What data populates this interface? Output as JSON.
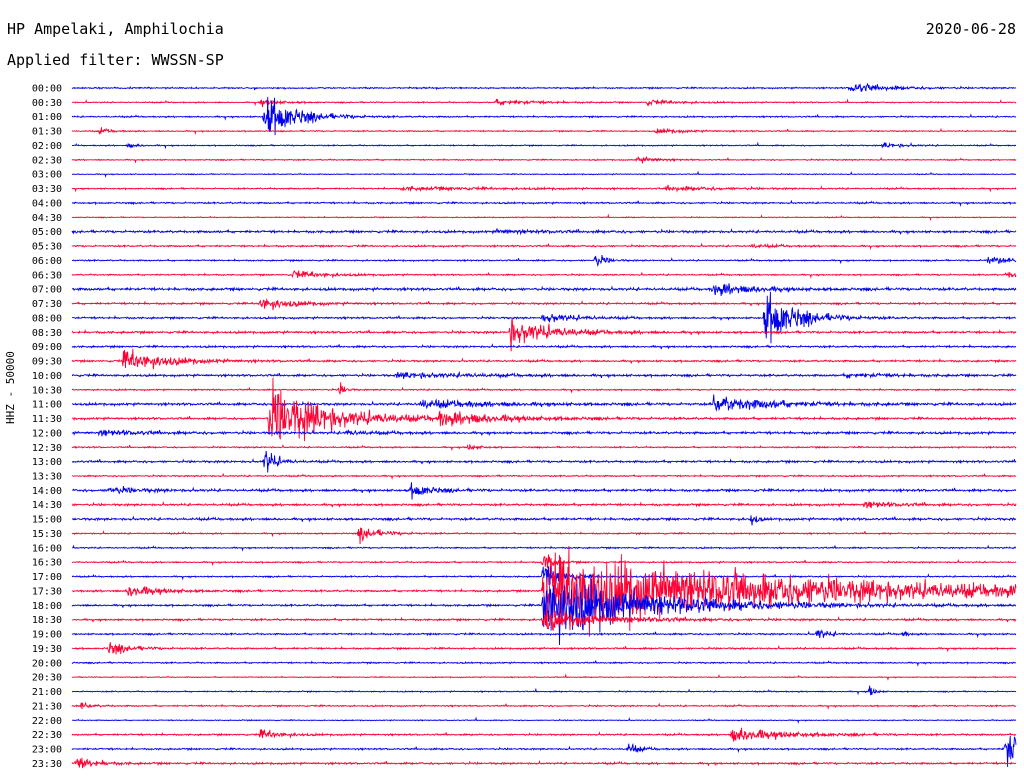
{
  "header": {
    "station": "HP Ampelaki, Amphilochia",
    "date": "2020-06-28",
    "filter_label": "Applied filter: WWSSN-SP"
  },
  "chart_data": {
    "type": "line",
    "title": "HP Ampelaki, Amphilochia",
    "ylabel": "HHZ - 50000",
    "xlabel": "",
    "colors": {
      "even": "#0000ee",
      "odd": "#ff0033"
    },
    "traces": [
      {
        "label": "00:00",
        "noise": 0.6,
        "events": [
          [
            0.825,
            4,
            0.04
          ]
        ]
      },
      {
        "label": "00:30",
        "noise": 0.5,
        "events": [
          [
            0.2,
            3,
            0.02
          ],
          [
            0.45,
            2.5,
            0.04
          ],
          [
            0.61,
            2.5,
            0.03
          ]
        ]
      },
      {
        "label": "01:00",
        "noise": 0.6,
        "events": [
          [
            0.205,
            22,
            0.03
          ]
        ]
      },
      {
        "label": "01:30",
        "noise": 0.5,
        "events": [
          [
            0.03,
            3,
            0.01
          ],
          [
            0.62,
            2,
            0.03
          ]
        ]
      },
      {
        "label": "02:00",
        "noise": 0.5,
        "events": [
          [
            0.06,
            2,
            0.01
          ],
          [
            0.86,
            2.5,
            0.02
          ]
        ]
      },
      {
        "label": "02:30",
        "noise": 0.5,
        "events": [
          [
            0.6,
            3,
            0.02
          ]
        ]
      },
      {
        "label": "03:00",
        "noise": 0.4,
        "events": []
      },
      {
        "label": "03:30",
        "noise": 0.6,
        "events": [
          [
            0.35,
            1.5,
            0.1
          ],
          [
            0.63,
            2,
            0.05
          ]
        ]
      },
      {
        "label": "04:00",
        "noise": 0.7,
        "events": []
      },
      {
        "label": "04:30",
        "noise": 0.4,
        "events": []
      },
      {
        "label": "05:00",
        "noise": 1.0,
        "events": [
          [
            0.45,
            1.5,
            0.05
          ]
        ]
      },
      {
        "label": "05:30",
        "noise": 0.7,
        "events": [
          [
            0.72,
            1.5,
            0.02
          ]
        ]
      },
      {
        "label": "06:00",
        "noise": 0.6,
        "events": [
          [
            0.555,
            6,
            0.01
          ],
          [
            0.97,
            4,
            0.02
          ]
        ]
      },
      {
        "label": "06:30",
        "noise": 0.6,
        "events": [
          [
            0.235,
            4,
            0.03
          ],
          [
            0.99,
            3,
            0.03
          ]
        ]
      },
      {
        "label": "07:00",
        "noise": 1.1,
        "events": [
          [
            0.68,
            6,
            0.04
          ]
        ]
      },
      {
        "label": "07:30",
        "noise": 0.8,
        "events": [
          [
            0.2,
            6,
            0.03
          ]
        ]
      },
      {
        "label": "08:00",
        "noise": 0.8,
        "events": [
          [
            0.5,
            5,
            0.03
          ],
          [
            0.735,
            26,
            0.03
          ]
        ]
      },
      {
        "label": "08:30",
        "noise": 0.9,
        "events": [
          [
            0.465,
            14,
            0.04
          ]
        ]
      },
      {
        "label": "09:00",
        "noise": 0.8,
        "events": []
      },
      {
        "label": "09:30",
        "noise": 0.8,
        "events": [
          [
            0.055,
            11,
            0.04
          ]
        ]
      },
      {
        "label": "10:00",
        "noise": 0.9,
        "events": [
          [
            0.345,
            2.5,
            0.08
          ],
          [
            0.82,
            2,
            0.05
          ]
        ]
      },
      {
        "label": "10:30",
        "noise": 0.6,
        "events": [
          [
            0.285,
            7,
            0.005
          ]
        ]
      },
      {
        "label": "11:00",
        "noise": 1.0,
        "events": [
          [
            0.37,
            4,
            0.07
          ],
          [
            0.68,
            8,
            0.06
          ]
        ]
      },
      {
        "label": "11:30",
        "noise": 0.9,
        "events": [
          [
            0.21,
            30,
            0.06
          ],
          [
            0.39,
            6,
            0.06
          ]
        ]
      },
      {
        "label": "12:00",
        "noise": 1.0,
        "events": [
          [
            0.03,
            2.5,
            0.04
          ],
          [
            0.29,
            2,
            0.03
          ]
        ]
      },
      {
        "label": "12:30",
        "noise": 0.6,
        "events": [
          [
            0.42,
            3,
            0.01
          ]
        ]
      },
      {
        "label": "13:00",
        "noise": 0.9,
        "events": [
          [
            0.205,
            14,
            0.01
          ]
        ]
      },
      {
        "label": "13:30",
        "noise": 0.6,
        "events": []
      },
      {
        "label": "14:00",
        "noise": 1.0,
        "events": [
          [
            0.36,
            7,
            0.02
          ],
          [
            0.04,
            3,
            0.03
          ]
        ]
      },
      {
        "label": "14:30",
        "noise": 0.9,
        "events": [
          [
            0.84,
            3,
            0.03
          ]
        ]
      },
      {
        "label": "15:00",
        "noise": 1.0,
        "events": [
          [
            0.72,
            6,
            0.005
          ]
        ]
      },
      {
        "label": "15:30",
        "noise": 0.6,
        "events": [
          [
            0.305,
            7,
            0.02
          ]
        ]
      },
      {
        "label": "16:00",
        "noise": 0.6,
        "events": []
      },
      {
        "label": "16:30",
        "noise": 0.6,
        "events": [
          [
            0.5,
            9,
            0.01
          ]
        ]
      },
      {
        "label": "17:00",
        "noise": 0.6,
        "events": [
          [
            0.5,
            12,
            0.02
          ]
        ]
      },
      {
        "label": "17:30",
        "noise": 0.8,
        "events": [
          [
            0.5,
            38,
            0.25
          ],
          [
            0.06,
            6,
            0.03
          ]
        ]
      },
      {
        "label": "18:00",
        "noise": 0.8,
        "events": [
          [
            0.5,
            32,
            0.1
          ]
        ]
      },
      {
        "label": "18:30",
        "noise": 0.8,
        "events": [
          [
            0.5,
            10,
            0.06
          ]
        ]
      },
      {
        "label": "19:00",
        "noise": 0.7,
        "events": [
          [
            0.79,
            6,
            0.01
          ],
          [
            0.88,
            3,
            0.005
          ]
        ]
      },
      {
        "label": "19:30",
        "noise": 0.7,
        "events": [
          [
            0.04,
            6,
            0.02
          ]
        ]
      },
      {
        "label": "20:00",
        "noise": 0.6,
        "events": []
      },
      {
        "label": "20:30",
        "noise": 0.4,
        "events": []
      },
      {
        "label": "21:00",
        "noise": 0.5,
        "events": [
          [
            0.845,
            6,
            0.005
          ]
        ]
      },
      {
        "label": "21:30",
        "noise": 0.6,
        "events": [
          [
            0.01,
            3,
            0.01
          ]
        ]
      },
      {
        "label": "22:00",
        "noise": 0.4,
        "events": []
      },
      {
        "label": "22:30",
        "noise": 0.7,
        "events": [
          [
            0.2,
            5,
            0.02
          ],
          [
            0.7,
            7,
            0.05
          ]
        ]
      },
      {
        "label": "23:00",
        "noise": 0.7,
        "events": [
          [
            0.59,
            6,
            0.01
          ],
          [
            0.99,
            18,
            0.03
          ]
        ]
      },
      {
        "label": "23:30",
        "noise": 0.8,
        "events": [
          [
            0.005,
            6,
            0.02
          ]
        ]
      }
    ]
  }
}
